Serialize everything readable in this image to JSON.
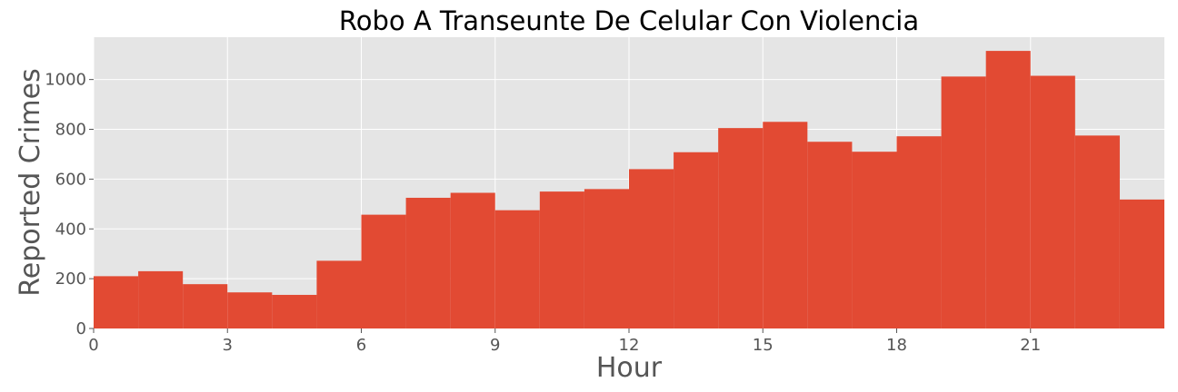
{
  "chart_data": {
    "type": "bar",
    "title": "Robo A Transeunte De Celular Con Violencia",
    "xlabel": "Hour",
    "ylabel": "Reported Crimes",
    "x_bin_start": [
      0,
      1,
      2,
      3,
      4,
      5,
      6,
      7,
      8,
      9,
      10,
      11,
      12,
      13,
      14,
      15,
      16,
      17,
      18,
      19,
      20,
      21,
      22,
      23
    ],
    "values": [
      210,
      230,
      178,
      145,
      135,
      272,
      457,
      525,
      545,
      475,
      550,
      560,
      640,
      708,
      805,
      830,
      750,
      710,
      772,
      1012,
      1115,
      1015,
      775,
      518
    ],
    "xlim": [
      0,
      24
    ],
    "ylim": [
      0,
      1170
    ],
    "xticks": [
      0,
      3,
      6,
      9,
      12,
      15,
      18,
      21
    ],
    "yticks": [
      0,
      200,
      400,
      600,
      800,
      1000
    ],
    "grid": true,
    "bar_color": "#E24A33",
    "plot_background": "#E5E5E5",
    "grid_color": "#FFFFFF"
  }
}
